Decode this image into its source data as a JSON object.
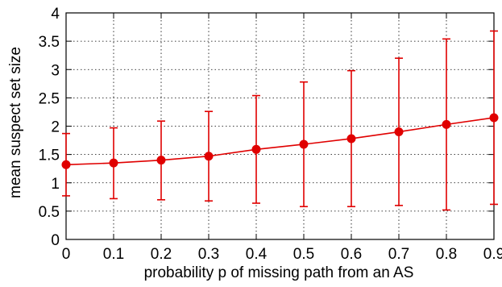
{
  "chart_data": {
    "type": "line",
    "title": "",
    "xlabel": "probability p of missing path from an AS",
    "ylabel": "mean suspect set size",
    "xlim": [
      0,
      0.9
    ],
    "ylim": [
      0,
      4
    ],
    "x_ticks": [
      "0",
      "0.1",
      "0.2",
      "0.3",
      "0.4",
      "0.5",
      "0.6",
      "0.7",
      "0.8",
      "0.9"
    ],
    "y_ticks": [
      "0",
      "0.5",
      "1",
      "1.5",
      "2",
      "2.5",
      "3",
      "3.5",
      "4"
    ],
    "grid": true,
    "legend": "none",
    "series": [
      {
        "color": "#e00000",
        "x": [
          0,
          0.1,
          0.2,
          0.3,
          0.4,
          0.5,
          0.6,
          0.7,
          0.8,
          0.9
        ],
        "y": [
          1.32,
          1.35,
          1.4,
          1.47,
          1.59,
          1.68,
          1.78,
          1.9,
          2.03,
          2.15
        ],
        "err_low": [
          0.77,
          0.72,
          0.7,
          0.68,
          0.64,
          0.58,
          0.58,
          0.6,
          0.52,
          0.62
        ],
        "err_high": [
          1.87,
          1.97,
          2.09,
          2.26,
          2.54,
          2.78,
          2.98,
          3.2,
          3.54,
          3.68
        ]
      }
    ]
  }
}
